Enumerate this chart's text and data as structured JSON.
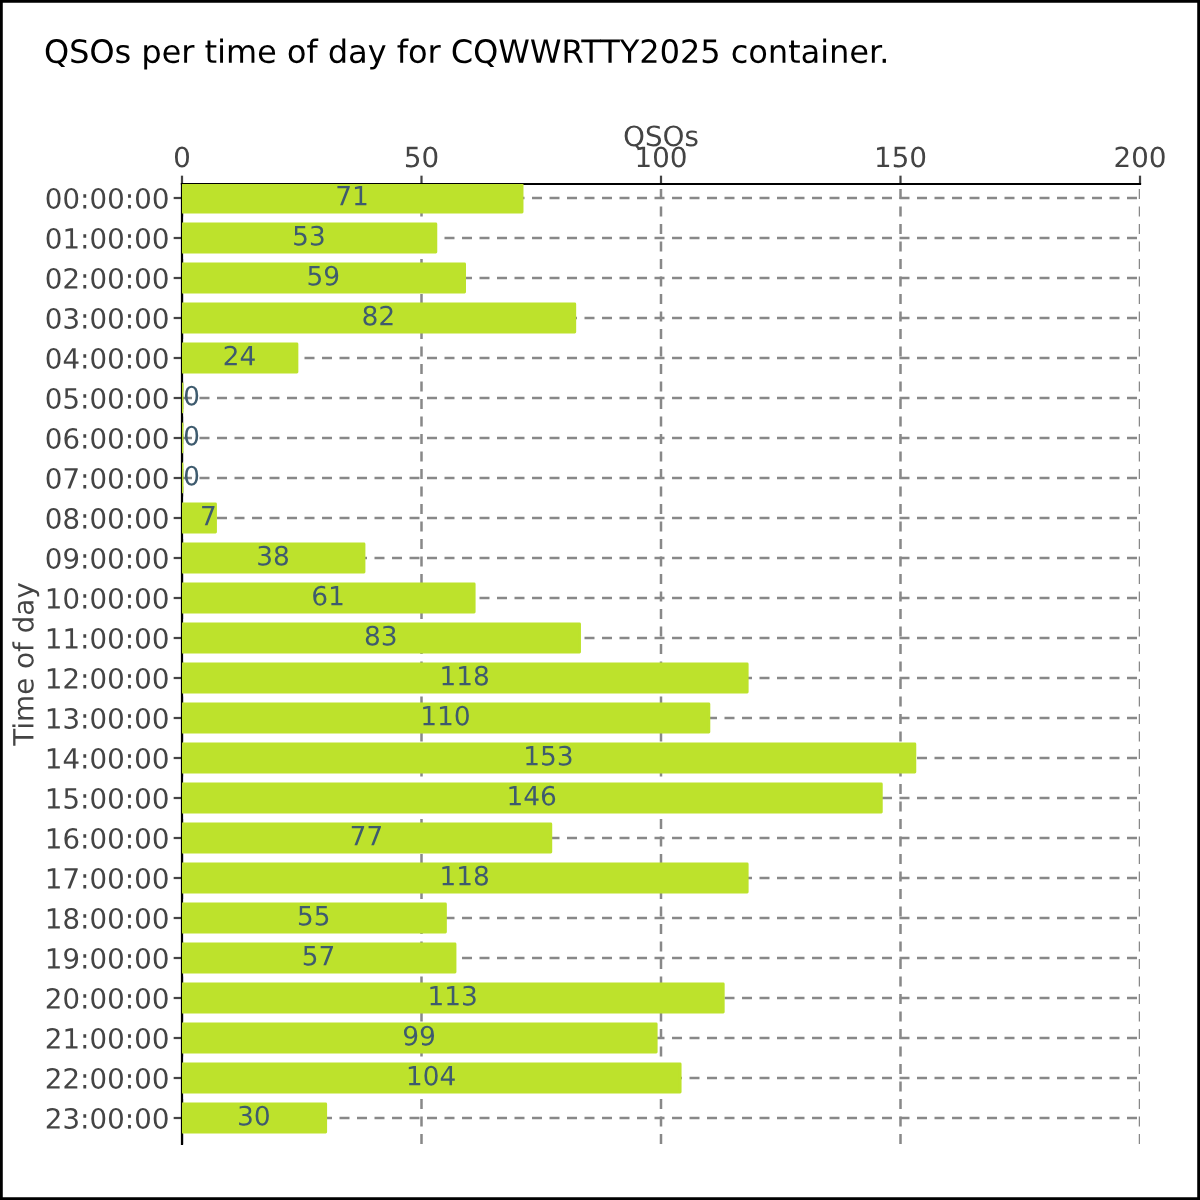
{
  "chart_data": {
    "type": "bar",
    "orientation": "horizontal",
    "title": "QSOs per time of day for CQWWRTTY2025 container.",
    "xlabel": "QSOs",
    "ylabel": "Time of day",
    "categories": [
      "00:00:00",
      "01:00:00",
      "02:00:00",
      "03:00:00",
      "04:00:00",
      "05:00:00",
      "06:00:00",
      "07:00:00",
      "08:00:00",
      "09:00:00",
      "10:00:00",
      "11:00:00",
      "12:00:00",
      "13:00:00",
      "14:00:00",
      "15:00:00",
      "16:00:00",
      "17:00:00",
      "18:00:00",
      "19:00:00",
      "20:00:00",
      "21:00:00",
      "22:00:00",
      "23:00:00"
    ],
    "values": [
      71,
      53,
      59,
      82,
      24,
      0,
      0,
      0,
      7,
      38,
      61,
      83,
      118,
      110,
      153,
      146,
      77,
      118,
      55,
      57,
      113,
      99,
      104,
      30
    ],
    "color": "#bde22c",
    "xlim": [
      0,
      200
    ],
    "xticks": [
      0,
      50,
      100,
      150,
      200
    ],
    "grid": true,
    "data_labels": true
  }
}
